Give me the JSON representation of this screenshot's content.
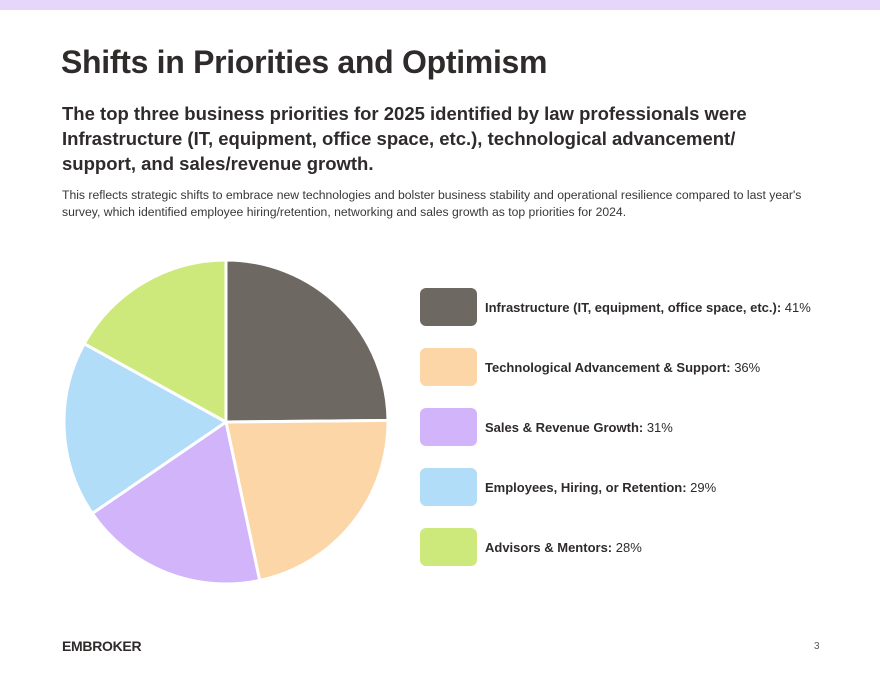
{
  "page": {
    "title": "Shifts in Priorities and Optimism",
    "subtitle": "The top three business priorities for 2025 identified by law professionals were Infrastructure (IT, equipment, office space, etc.), technological advancement/ support, and sales/revenue growth.",
    "body": "This reflects strategic shifts to embrace new technologies and bolster business stability and operational resilience compared to last year's survey, which identified employee hiring/retention, networking and sales growth as top priorities for 2024.",
    "logo": "EMBROKER",
    "page_number": "3",
    "accent_band_color": "#e6d6fb"
  },
  "chart_data": {
    "type": "pie",
    "start": "12 o'clock, clockwise",
    "unit": "%",
    "legend_placement": "right",
    "slices": [
      {
        "label": "Infrastructure (IT, equipment, office space, etc.):",
        "value": 41,
        "display": "41%",
        "color": "#6e6862"
      },
      {
        "label": "Technological Advancement & Support:",
        "value": 36,
        "display": "36%",
        "color": "#fdd6a8"
      },
      {
        "label": "Sales & Revenue Growth:",
        "value": 31,
        "display": "31%",
        "color": "#d2b4fb"
      },
      {
        "label": "Employees, Hiring, or Retention:",
        "value": 29,
        "display": "29%",
        "color": "#b1ddf8"
      },
      {
        "label": "Advisors & Mentors:",
        "value": 28,
        "display": "28%",
        "color": "#cde97c"
      }
    ]
  }
}
